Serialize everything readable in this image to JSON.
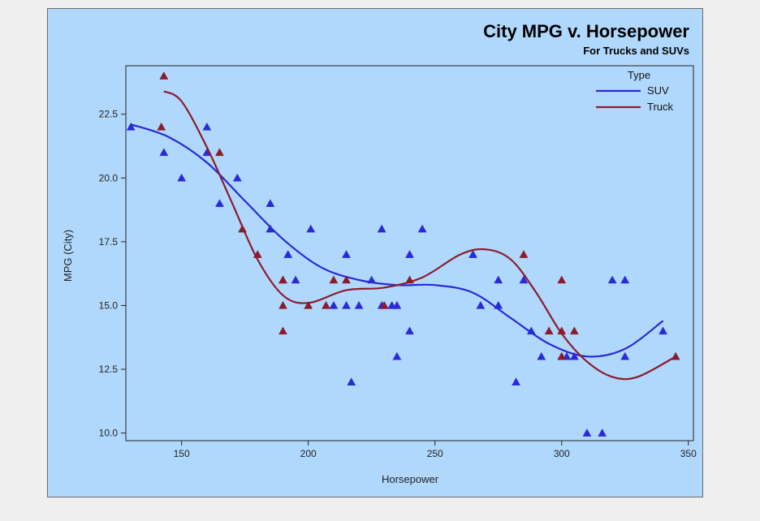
{
  "chart_data": {
    "type": "scatter",
    "title": "City MPG v. Horsepower",
    "subtitle": "For Trucks and SUVs",
    "xlabel": "Horsepower",
    "ylabel": "MPG (City)",
    "xlim": [
      128,
      352
    ],
    "ylim": [
      9.7,
      24.4
    ],
    "xticks": [
      150,
      200,
      250,
      300,
      350
    ],
    "yticks": [
      10.0,
      12.5,
      15.0,
      17.5,
      20.0,
      22.5
    ],
    "xtick_labels": [
      "150",
      "200",
      "250",
      "300",
      "350"
    ],
    "ytick_labels": [
      "10.0",
      "12.5",
      "15.0",
      "17.5",
      "20.0",
      "22.5"
    ],
    "grid": false,
    "legend": {
      "title": "Type",
      "position": "top-right"
    },
    "series": [
      {
        "name": "SUV",
        "color": "#2a2ad8",
        "marker": "triangle",
        "points": [
          [
            130,
            22
          ],
          [
            143,
            21
          ],
          [
            150,
            20
          ],
          [
            160,
            22
          ],
          [
            160,
            21
          ],
          [
            165,
            19
          ],
          [
            172,
            20
          ],
          [
            185,
            19
          ],
          [
            185,
            18
          ],
          [
            190,
            16
          ],
          [
            192,
            17
          ],
          [
            195,
            16
          ],
          [
            201,
            18
          ],
          [
            210,
            15
          ],
          [
            215,
            17
          ],
          [
            215,
            15
          ],
          [
            217,
            12
          ],
          [
            220,
            15
          ],
          [
            225,
            16
          ],
          [
            229,
            18
          ],
          [
            229,
            15
          ],
          [
            233,
            15
          ],
          [
            235,
            13
          ],
          [
            235,
            15
          ],
          [
            240,
            17
          ],
          [
            240,
            14
          ],
          [
            245,
            18
          ],
          [
            265,
            17
          ],
          [
            268,
            15
          ],
          [
            275,
            16
          ],
          [
            275,
            15
          ],
          [
            282,
            12
          ],
          [
            285,
            16
          ],
          [
            288,
            14
          ],
          [
            292,
            13
          ],
          [
            300,
            13
          ],
          [
            302,
            13
          ],
          [
            305,
            13
          ],
          [
            310,
            10
          ],
          [
            316,
            10
          ],
          [
            320,
            16
          ],
          [
            325,
            16
          ],
          [
            325,
            13
          ],
          [
            340,
            14
          ]
        ],
        "fit": [
          [
            130,
            22.1
          ],
          [
            145,
            21.6
          ],
          [
            160,
            20.6
          ],
          [
            175,
            19.1
          ],
          [
            190,
            17.6
          ],
          [
            205,
            16.5
          ],
          [
            220,
            16.0
          ],
          [
            235,
            15.8
          ],
          [
            250,
            15.8
          ],
          [
            265,
            15.5
          ],
          [
            280,
            14.5
          ],
          [
            295,
            13.5
          ],
          [
            310,
            13.0
          ],
          [
            325,
            13.3
          ],
          [
            340,
            14.4
          ]
        ]
      },
      {
        "name": "Truck",
        "color": "#8c1c2c",
        "marker": "triangle",
        "points": [
          [
            142,
            22
          ],
          [
            143,
            24
          ],
          [
            165,
            21
          ],
          [
            174,
            18
          ],
          [
            180,
            17
          ],
          [
            190,
            16
          ],
          [
            190,
            15
          ],
          [
            190,
            14
          ],
          [
            200,
            15
          ],
          [
            207,
            15
          ],
          [
            210,
            16
          ],
          [
            215,
            16
          ],
          [
            230,
            15
          ],
          [
            240,
            16
          ],
          [
            285,
            17
          ],
          [
            295,
            14
          ],
          [
            300,
            16
          ],
          [
            300,
            14
          ],
          [
            300,
            13
          ],
          [
            305,
            14
          ],
          [
            345,
            13
          ]
        ],
        "fit": [
          [
            143,
            23.4
          ],
          [
            150,
            23.0
          ],
          [
            160,
            21.2
          ],
          [
            170,
            19.0
          ],
          [
            180,
            16.8
          ],
          [
            190,
            15.4
          ],
          [
            200,
            15.1
          ],
          [
            215,
            15.6
          ],
          [
            230,
            15.7
          ],
          [
            245,
            16.1
          ],
          [
            260,
            17.0
          ],
          [
            270,
            17.2
          ],
          [
            280,
            16.8
          ],
          [
            290,
            15.5
          ],
          [
            300,
            13.9
          ],
          [
            310,
            12.8
          ],
          [
            320,
            12.2
          ],
          [
            330,
            12.2
          ],
          [
            345,
            13.0
          ]
        ]
      }
    ]
  }
}
